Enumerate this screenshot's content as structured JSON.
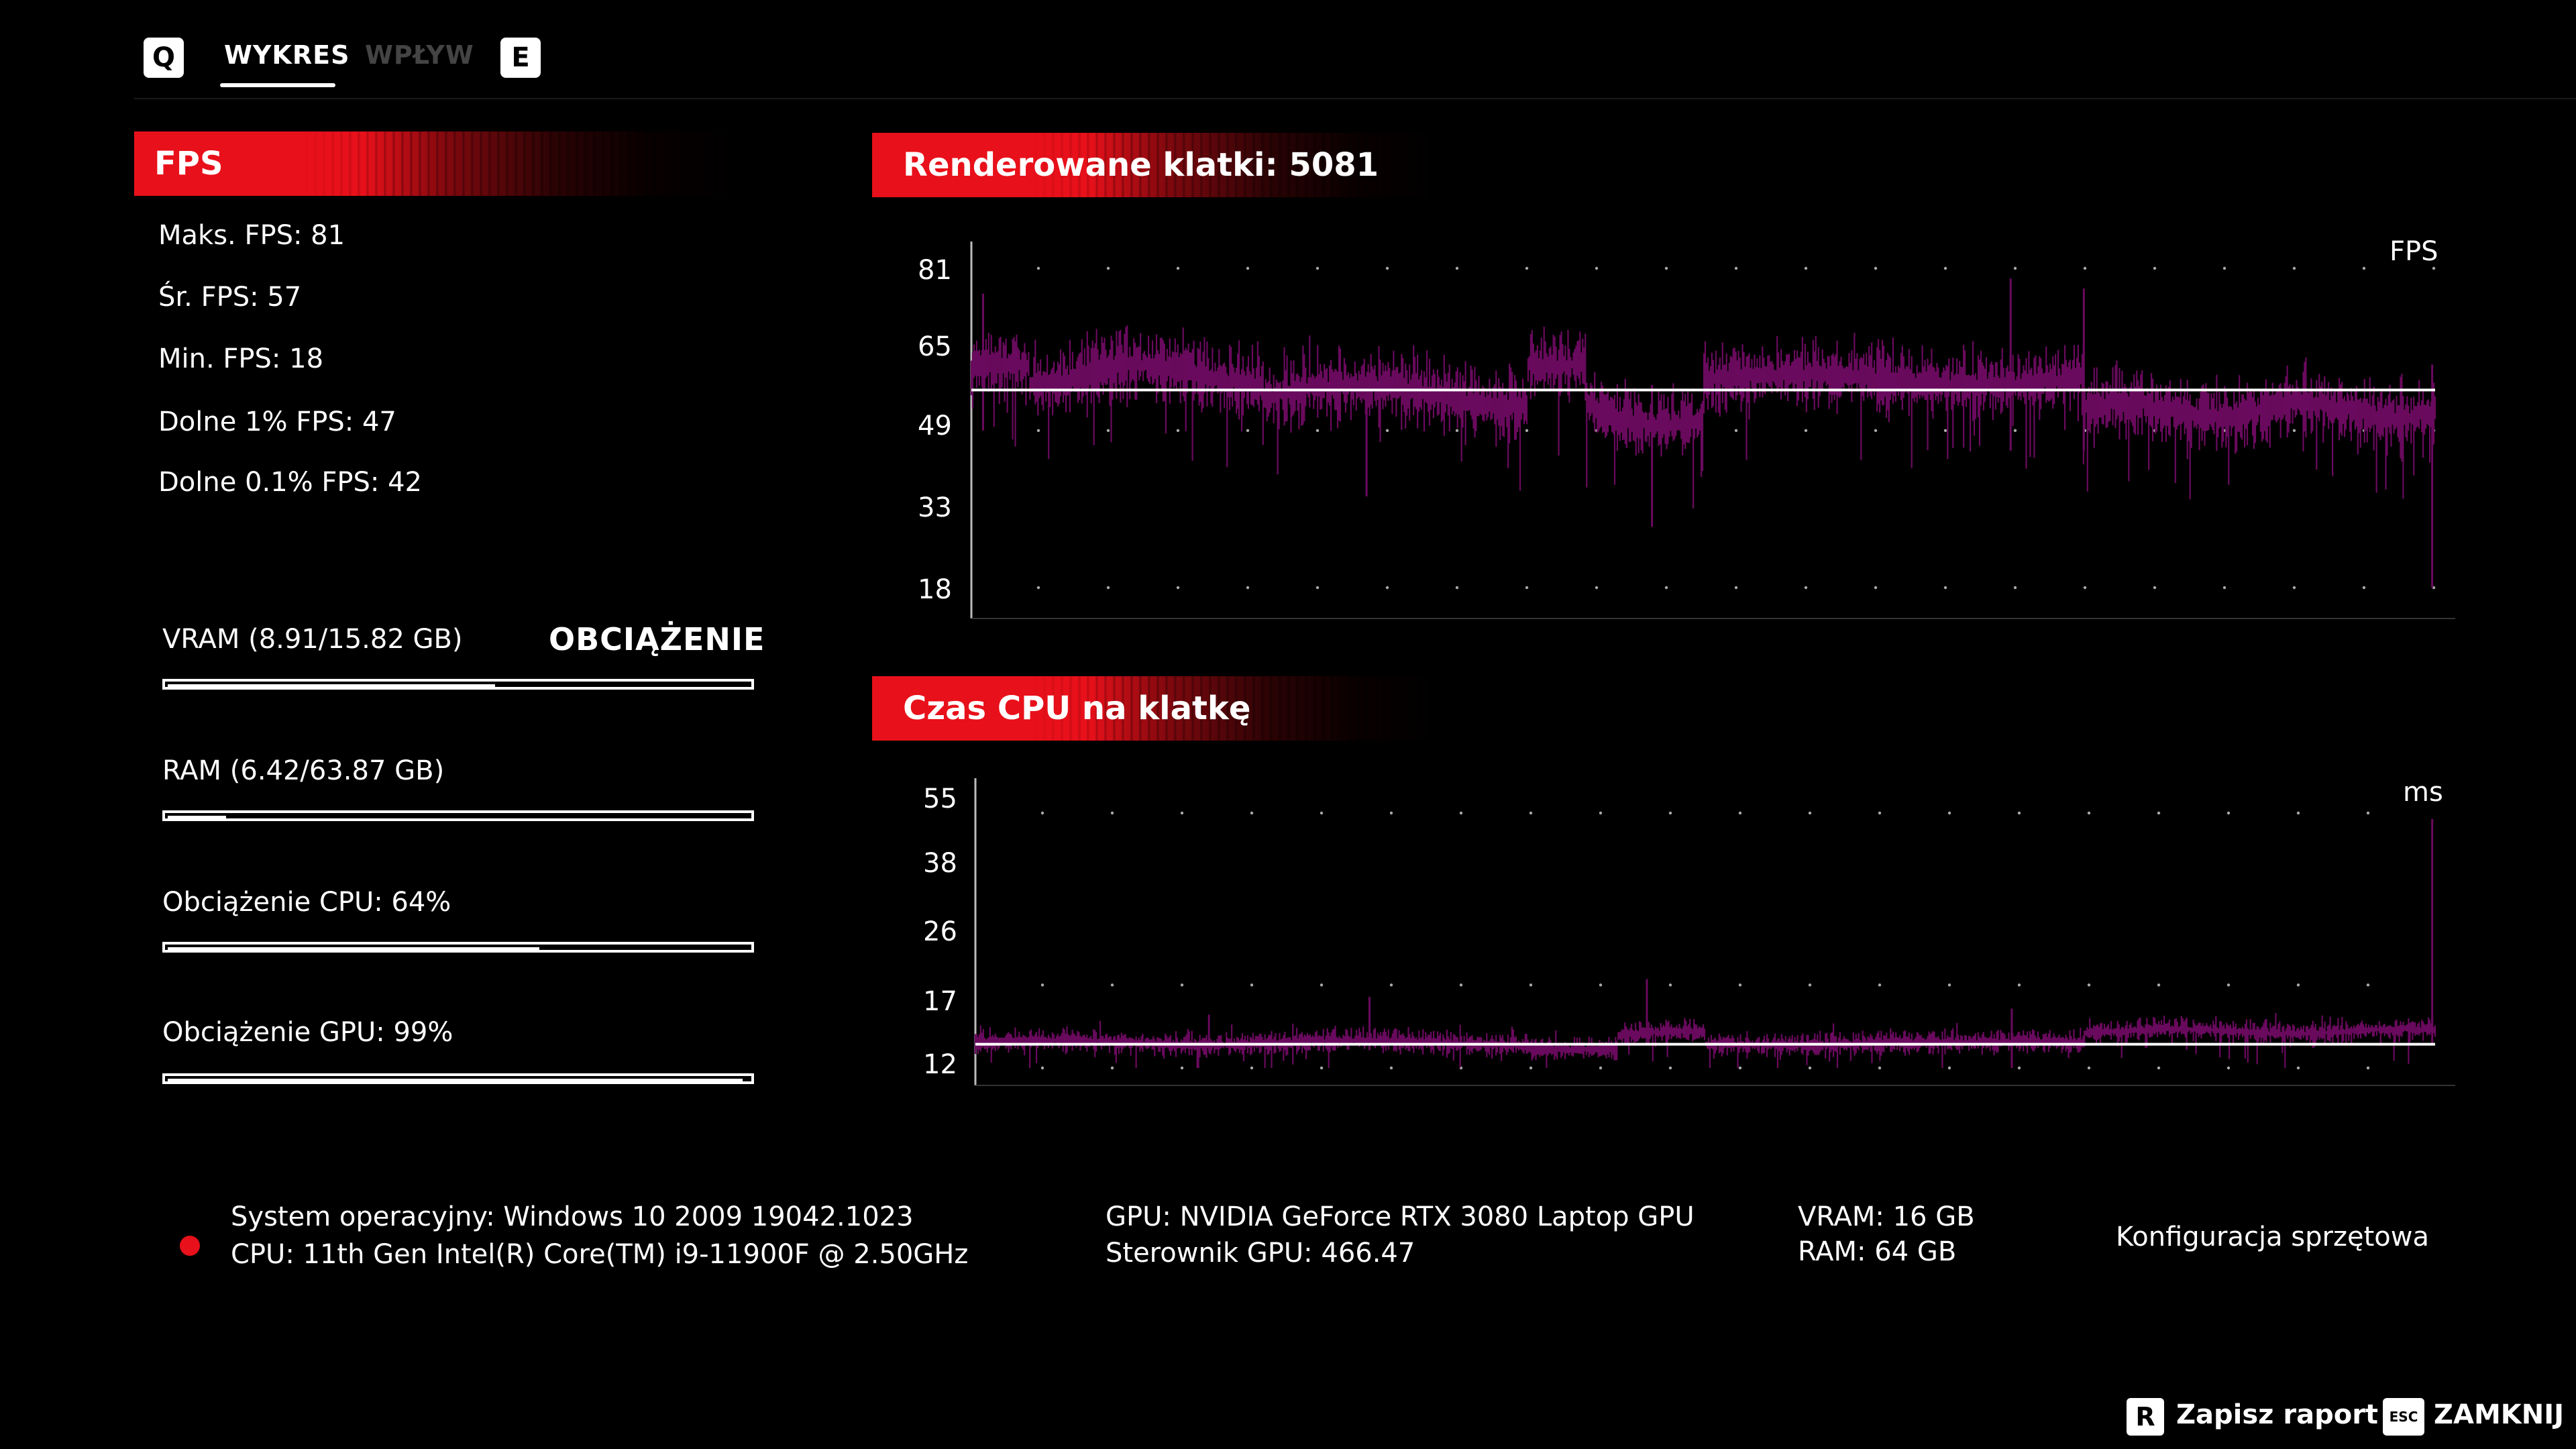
{
  "tabs": {
    "prev_key": "Q",
    "next_key": "E",
    "items": [
      {
        "label": "WYKRES",
        "active": true
      },
      {
        "label": "WPŁYW",
        "active": false
      }
    ]
  },
  "fps_panel": {
    "title": "FPS",
    "stats": [
      "Maks. FPS: 81",
      "Śr. FPS: 57",
      "Min. FPS: 18",
      "Dolne 1% FPS: 47",
      "Dolne 0.1% FPS: 42"
    ]
  },
  "load_panel": {
    "title": "OBCIĄŻENIE",
    "bars": [
      {
        "label": "VRAM (8.91/15.82 GB)",
        "fraction": 0.563
      },
      {
        "label": "RAM (6.42/63.87 GB)",
        "fraction": 0.1
      },
      {
        "label": "Obciążenie CPU: 64%",
        "fraction": 0.64
      },
      {
        "label": "Obciążenie GPU: 99%",
        "fraction": 0.99
      }
    ]
  },
  "fps_chart": {
    "header": "Renderowane klatki: 5081",
    "unit": "FPS",
    "tick_labels": [
      "81",
      "65",
      "49",
      "33",
      "18"
    ]
  },
  "cpu_chart": {
    "header": "Czas CPU na klatkę",
    "unit": "ms",
    "tick_labels": [
      "55",
      "38",
      "26",
      "17",
      "12"
    ]
  },
  "footer": {
    "os": "System operacyjny: Windows 10 2009 19042.1023",
    "cpu": "CPU: 11th Gen Intel(R) Core(TM) i9-11900F @ 2.50GHz",
    "gpu": "GPU: NVIDIA GeForce RTX 3080 Laptop GPU",
    "driver": "Sterownik GPU: 466.47",
    "vram": "VRAM: 16 GB",
    "ram": "RAM: 64 GB",
    "config_link": "Konfiguracja sprzętowa"
  },
  "actions": {
    "save_key": "R",
    "save_label": "Zapisz raport",
    "close_key": "ESC",
    "close_label": "ZAMKNIJ"
  },
  "colors": {
    "accent_red": "#e8101a",
    "series_purple": "#6a0a5e",
    "average_line": "#ffffff"
  },
  "chart_data": [
    {
      "type": "area",
      "title": "Renderowane klatki: 5081",
      "ylabel": "FPS",
      "y_ticks": [
        81,
        65,
        49,
        33,
        18
      ],
      "ylim": [
        18,
        81
      ],
      "frames": 5081,
      "average": 57,
      "min": 18,
      "max": 81,
      "low_1pct": 47,
      "low_0_1pct": 42,
      "grid": true
    },
    {
      "type": "area",
      "title": "Czas CPU na klatkę",
      "ylabel": "ms",
      "y_ticks": [
        55,
        38,
        26,
        17,
        12
      ],
      "ylim": [
        12,
        55
      ],
      "average": 16,
      "grid": true
    }
  ]
}
